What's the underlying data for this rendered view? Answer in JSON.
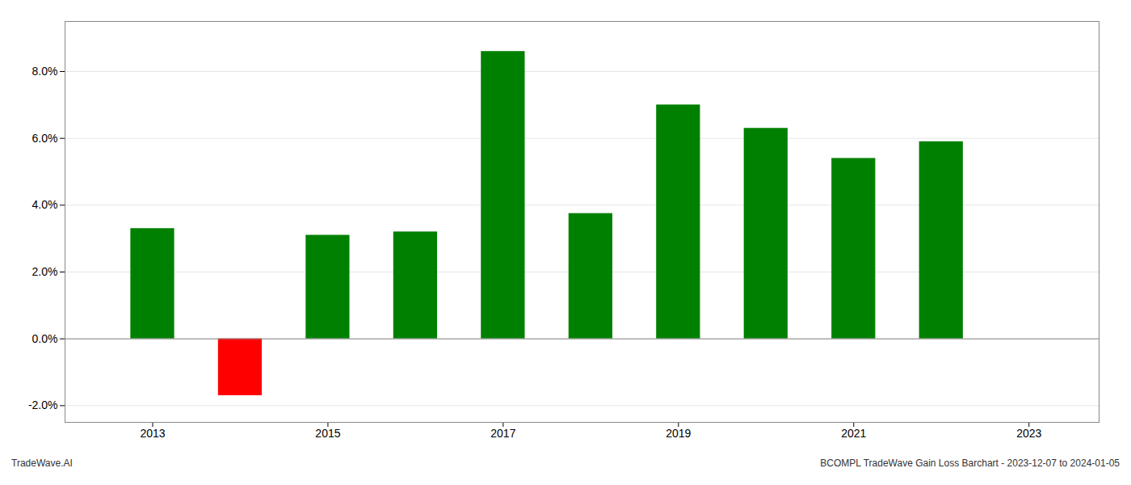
{
  "chart_data": {
    "type": "bar",
    "x": [
      2013,
      2014,
      2015,
      2016,
      2017,
      2018,
      2019,
      2020,
      2021,
      2022
    ],
    "values": [
      0.033,
      -0.017,
      0.031,
      0.032,
      0.086,
      0.0375,
      0.07,
      0.063,
      0.054,
      0.059
    ],
    "colors": [
      "#008000",
      "#ff0000",
      "#008000",
      "#008000",
      "#008000",
      "#008000",
      "#008000",
      "#008000",
      "#008000",
      "#008000"
    ],
    "xlim": [
      2012.0,
      2023.8
    ],
    "xticks": [
      2013,
      2015,
      2017,
      2019,
      2021,
      2023
    ],
    "ylim": [
      -0.025,
      0.095
    ],
    "yticks": [
      {
        "value": -0.02,
        "label": "-2.0%"
      },
      {
        "value": 0.0,
        "label": "0.0%"
      },
      {
        "value": 0.02,
        "label": "2.0%"
      },
      {
        "value": 0.04,
        "label": "4.0%"
      },
      {
        "value": 0.06,
        "label": "6.0%"
      },
      {
        "value": 0.08,
        "label": "8.0%"
      }
    ],
    "grid": true,
    "annotations": [
      "TradeWave.AI",
      "BCOMPL TradeWave Gain Loss Barchart - 2023-12-07 to 2024-01-05"
    ]
  }
}
